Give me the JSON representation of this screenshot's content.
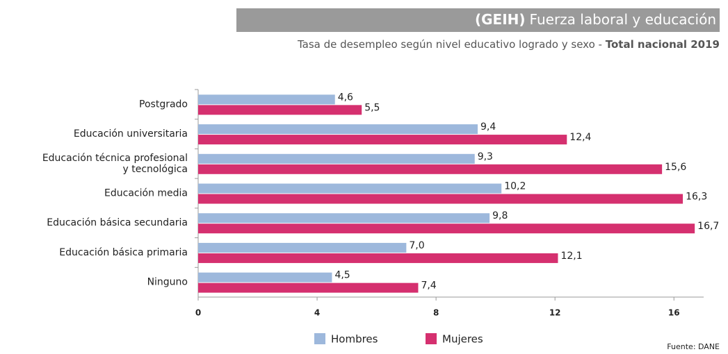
{
  "chart_data": {
    "type": "barh",
    "title_bold": "(GEIH)",
    "title": "Fuerza laboral y educación",
    "subtitle": "Tasa de desempleo según nivel educativo logrado  y sexo - ",
    "subtitle_bold": "Total nacional 2019",
    "source": "Fuente: DANE",
    "categories": [
      [
        "Postgrado"
      ],
      [
        "Educación universitaria"
      ],
      [
        "Educación técnica profesional",
        "y tecnológica"
      ],
      [
        "Educación media"
      ],
      [
        "Educación básica secundaria"
      ],
      [
        "Educación básica primaria"
      ],
      [
        "Ninguno"
      ]
    ],
    "series": [
      {
        "name": "Hombres",
        "color": "#9db8dc",
        "values": [
          4.6,
          9.4,
          9.3,
          10.2,
          9.8,
          7.0,
          4.5
        ],
        "value_labels": [
          "4,6",
          "9,4",
          "9,3",
          "10,2",
          "9,8",
          "7,0",
          "4,5"
        ]
      },
      {
        "name": "Mujeres",
        "color": "#d5306f",
        "values": [
          5.5,
          12.4,
          15.6,
          16.3,
          16.7,
          12.1,
          7.4
        ],
        "value_labels": [
          "5,5",
          "12,4",
          "15,6",
          "16,3",
          "16,7",
          "12,1",
          "7,4"
        ]
      }
    ],
    "xlim": [
      0,
      17
    ],
    "xticks": [
      0,
      4,
      8,
      12,
      16
    ],
    "legend": "bottom"
  }
}
